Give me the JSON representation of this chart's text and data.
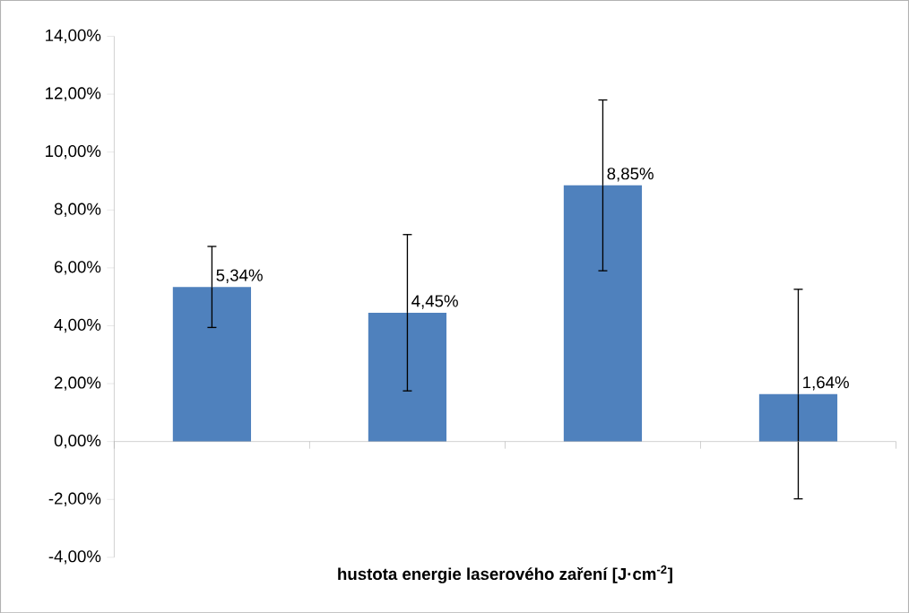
{
  "chart_data": {
    "type": "bar",
    "xlabel": "**hustota energie laserového zaření [J·cm$^{-2}$]**",
    "categories": [
      null,
      null,
      null,
      null
    ],
    "values": [
      5.34,
      4.45,
      8.85,
      1.64
    ],
    "errors": [
      1.4,
      2.7,
      2.95,
      3.62
    ],
    "value_labels": [
      "5,34%",
      "4,45%",
      "8,85%",
      "1,64%"
    ],
    "color": "#4f81bd",
    "ylim": [
      -4,
      14
    ],
    "yticks": [
      {
        "value": -4,
        "label": "-4,00%"
      },
      {
        "value": -2,
        "label": "-2,00%"
      },
      {
        "value": 0,
        "label": "0,00%"
      },
      {
        "value": 2,
        "label": "2,00%"
      },
      {
        "value": 4,
        "label": "4,00%"
      },
      {
        "value": 6,
        "label": "6,00%"
      },
      {
        "value": 8,
        "label": "8,00%"
      },
      {
        "value": 10,
        "label": "10,00%"
      },
      {
        "value": 12,
        "label": "12,00%"
      },
      {
        "value": 14,
        "label": "14,00%"
      }
    ]
  }
}
